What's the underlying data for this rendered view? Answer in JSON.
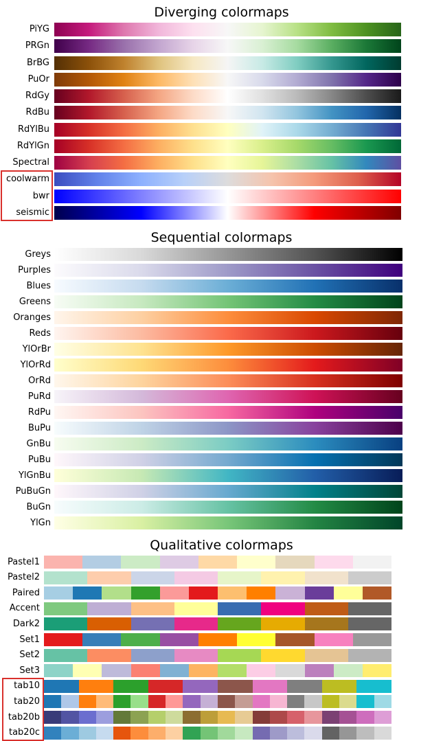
{
  "sections": [
    {
      "title": "Diverging colormaps",
      "maps": [
        {
          "name": "PiYG",
          "type": "gradient",
          "colors": [
            "#8e0152",
            "#c51b7d",
            "#de77ae",
            "#f1b6da",
            "#fde0ef",
            "#f7f7f7",
            "#e6f5d0",
            "#b8e186",
            "#7fbc41",
            "#4d9221",
            "#276419"
          ]
        },
        {
          "name": "PRGn",
          "type": "gradient",
          "colors": [
            "#40004b",
            "#762a83",
            "#9970ab",
            "#c2a5cf",
            "#e7d4e8",
            "#f7f7f7",
            "#d9f0d3",
            "#a6dba0",
            "#5aae61",
            "#1b7837",
            "#00441b"
          ]
        },
        {
          "name": "BrBG",
          "type": "gradient",
          "colors": [
            "#543005",
            "#8c510a",
            "#bf812d",
            "#dfc27d",
            "#f6e8c3",
            "#f5f5f5",
            "#c7eae5",
            "#80cdc1",
            "#35978f",
            "#01665e",
            "#003c30"
          ]
        },
        {
          "name": "PuOr",
          "type": "gradient",
          "colors": [
            "#7f3b08",
            "#b35806",
            "#e08214",
            "#fdb863",
            "#fee0b6",
            "#f7f7f7",
            "#d8daeb",
            "#b2abd2",
            "#8073ac",
            "#542788",
            "#2d004b"
          ]
        },
        {
          "name": "RdGy",
          "type": "gradient",
          "colors": [
            "#67001f",
            "#b2182b",
            "#d6604d",
            "#f4a582",
            "#fddbc7",
            "#ffffff",
            "#e0e0e0",
            "#bababa",
            "#878787",
            "#4d4d4d",
            "#1a1a1a"
          ]
        },
        {
          "name": "RdBu",
          "type": "gradient",
          "colors": [
            "#67001f",
            "#b2182b",
            "#d6604d",
            "#f4a582",
            "#fddbc7",
            "#f7f7f7",
            "#d1e5f0",
            "#92c5de",
            "#4393c3",
            "#2166ac",
            "#053061"
          ]
        },
        {
          "name": "RdYlBu",
          "type": "gradient",
          "colors": [
            "#a50026",
            "#d73027",
            "#f46d43",
            "#fdae61",
            "#fee090",
            "#ffffbf",
            "#e0f3f8",
            "#abd9e9",
            "#74add1",
            "#4575b4",
            "#313695"
          ]
        },
        {
          "name": "RdYlGn",
          "type": "gradient",
          "colors": [
            "#a50026",
            "#d73027",
            "#f46d43",
            "#fdae61",
            "#fee08b",
            "#ffffbf",
            "#d9ef8b",
            "#a6d96a",
            "#66bd63",
            "#1a9850",
            "#006837"
          ]
        },
        {
          "name": "Spectral",
          "type": "gradient",
          "colors": [
            "#9e0142",
            "#d53e4f",
            "#f46d43",
            "#fdae61",
            "#fee08b",
            "#ffffbf",
            "#e6f598",
            "#abdda4",
            "#66c2a5",
            "#3288bd",
            "#5e4fa2"
          ]
        },
        {
          "name": "coolwarm",
          "type": "gradient",
          "colors": [
            "#3b4cc0",
            "#6282ea",
            "#8db0fe",
            "#b8d0f9",
            "#dddcdc",
            "#f5c4ad",
            "#f49a7b",
            "#de604d",
            "#b40426"
          ]
        },
        {
          "name": "bwr",
          "type": "gradient",
          "colors": [
            "#0000ff",
            "#ffffff",
            "#ff0000"
          ]
        },
        {
          "name": "seismic",
          "type": "gradient",
          "colors": [
            "#00004c",
            "#0000ff",
            "#ffffff",
            "#ff0000",
            "#800000"
          ]
        }
      ]
    },
    {
      "title": "Sequential colormaps",
      "maps": [
        {
          "name": "Greys",
          "type": "gradient",
          "colors": [
            "#ffffff",
            "#d9d9d9",
            "#969696",
            "#525252",
            "#000000"
          ]
        },
        {
          "name": "Purples",
          "type": "gradient",
          "colors": [
            "#fcfbfd",
            "#dadaeb",
            "#9e9ac8",
            "#6a51a3",
            "#3f007d"
          ]
        },
        {
          "name": "Blues",
          "type": "gradient",
          "colors": [
            "#f7fbff",
            "#c6dbef",
            "#6baed6",
            "#2171b5",
            "#08306b"
          ]
        },
        {
          "name": "Greens",
          "type": "gradient",
          "colors": [
            "#f7fcf5",
            "#c7e9c0",
            "#74c476",
            "#238b45",
            "#00441b"
          ]
        },
        {
          "name": "Oranges",
          "type": "gradient",
          "colors": [
            "#fff5eb",
            "#fdd0a2",
            "#fd8d3c",
            "#d94801",
            "#7f2704"
          ]
        },
        {
          "name": "Reds",
          "type": "gradient",
          "colors": [
            "#fff5f0",
            "#fcbba1",
            "#fb6a4a",
            "#cb181d",
            "#67000d"
          ]
        },
        {
          "name": "YlOrBr",
          "type": "gradient",
          "colors": [
            "#ffffe5",
            "#fee391",
            "#fe9929",
            "#cc4c02",
            "#662506"
          ]
        },
        {
          "name": "YlOrRd",
          "type": "gradient",
          "colors": [
            "#ffffcc",
            "#fed976",
            "#fd8d3c",
            "#e31a1c",
            "#800026"
          ]
        },
        {
          "name": "OrRd",
          "type": "gradient",
          "colors": [
            "#fff7ec",
            "#fdd49e",
            "#fc8d59",
            "#d7301f",
            "#7f0000"
          ]
        },
        {
          "name": "PuRd",
          "type": "gradient",
          "colors": [
            "#f7f4f9",
            "#d4b9da",
            "#df65b0",
            "#ce1256",
            "#67001f"
          ]
        },
        {
          "name": "RdPu",
          "type": "gradient",
          "colors": [
            "#fff7f3",
            "#fcc5c0",
            "#f768a1",
            "#ae017e",
            "#49006a"
          ]
        },
        {
          "name": "BuPu",
          "type": "gradient",
          "colors": [
            "#f7fcfd",
            "#bfd3e6",
            "#8c96c6",
            "#88419d",
            "#4d004b"
          ]
        },
        {
          "name": "GnBu",
          "type": "gradient",
          "colors": [
            "#f7fcf0",
            "#ccebc5",
            "#7bccc4",
            "#2b8cbe",
            "#084081"
          ]
        },
        {
          "name": "PuBu",
          "type": "gradient",
          "colors": [
            "#fff7fb",
            "#d0d1e6",
            "#74a9cf",
            "#0570b0",
            "#023858"
          ]
        },
        {
          "name": "YlGnBu",
          "type": "gradient",
          "colors": [
            "#ffffd9",
            "#c7e9b4",
            "#41b6c4",
            "#225ea8",
            "#081d58"
          ]
        },
        {
          "name": "PuBuGn",
          "type": "gradient",
          "colors": [
            "#fff7fb",
            "#d0d1e6",
            "#67a9cf",
            "#02818a",
            "#014636"
          ]
        },
        {
          "name": "BuGn",
          "type": "gradient",
          "colors": [
            "#f7fcfd",
            "#ccece6",
            "#66c2a4",
            "#238b45",
            "#00441b"
          ]
        },
        {
          "name": "YlGn",
          "type": "gradient",
          "colors": [
            "#ffffe5",
            "#d9f0a3",
            "#78c679",
            "#238443",
            "#004529"
          ]
        }
      ]
    },
    {
      "title": "Qualitative colormaps",
      "maps": [
        {
          "name": "Pastel1",
          "type": "discrete",
          "colors": [
            "#fbb4ae",
            "#b3cde3",
            "#ccebc5",
            "#decbe4",
            "#fed9a6",
            "#ffffcc",
            "#e5d8bd",
            "#fddaec",
            "#f2f2f2"
          ]
        },
        {
          "name": "Pastel2",
          "type": "discrete",
          "colors": [
            "#b3e2cd",
            "#fdcdac",
            "#cbd5e8",
            "#f4cae4",
            "#e6f5c9",
            "#fff2ae",
            "#f1e2cc",
            "#cccccc"
          ]
        },
        {
          "name": "Paired",
          "type": "discrete",
          "colors": [
            "#a6cee3",
            "#1f78b4",
            "#b2df8a",
            "#33a02c",
            "#fb9a99",
            "#e31a1c",
            "#fdbf6f",
            "#ff7f00",
            "#cab2d6",
            "#6a3d9a",
            "#ffff99",
            "#b15928"
          ]
        },
        {
          "name": "Accent",
          "type": "discrete",
          "colors": [
            "#7fc97f",
            "#beaed4",
            "#fdc086",
            "#ffff99",
            "#386cb0",
            "#f0027f",
            "#bf5b17",
            "#666666"
          ]
        },
        {
          "name": "Dark2",
          "type": "discrete",
          "colors": [
            "#1b9e77",
            "#d95f02",
            "#7570b3",
            "#e7298a",
            "#66a61e",
            "#e6ab02",
            "#a6761d",
            "#666666"
          ]
        },
        {
          "name": "Set1",
          "type": "discrete",
          "colors": [
            "#e41a1c",
            "#377eb8",
            "#4daf4a",
            "#984ea3",
            "#ff7f00",
            "#ffff33",
            "#a65628",
            "#f781bf",
            "#999999"
          ]
        },
        {
          "name": "Set2",
          "type": "discrete",
          "colors": [
            "#66c2a5",
            "#fc8d62",
            "#8da0cb",
            "#e78ac3",
            "#a6d854",
            "#ffd92f",
            "#e5c494",
            "#b3b3b3"
          ]
        },
        {
          "name": "Set3",
          "type": "discrete",
          "colors": [
            "#8dd3c7",
            "#ffffb3",
            "#bebada",
            "#fb8072",
            "#80b1d3",
            "#fdb462",
            "#b3de69",
            "#fccde5",
            "#d9d9d9",
            "#bc80bd",
            "#ccebc5",
            "#ffed6f"
          ]
        },
        {
          "name": "tab10",
          "type": "discrete",
          "colors": [
            "#1f77b4",
            "#ff7f0e",
            "#2ca02c",
            "#d62728",
            "#9467bd",
            "#8c564b",
            "#e377c2",
            "#7f7f7f",
            "#bcbd22",
            "#17becf"
          ]
        },
        {
          "name": "tab20",
          "type": "discrete",
          "colors": [
            "#1f77b4",
            "#aec7e8",
            "#ff7f0e",
            "#ffbb78",
            "#2ca02c",
            "#98df8a",
            "#d62728",
            "#ff9896",
            "#9467bd",
            "#c5b0d5",
            "#8c564b",
            "#c49c94",
            "#e377c2",
            "#f7b6d2",
            "#7f7f7f",
            "#c7c7c7",
            "#bcbd22",
            "#dbdb8d",
            "#17becf",
            "#9edae5"
          ]
        },
        {
          "name": "tab20b",
          "type": "discrete",
          "colors": [
            "#393b79",
            "#5254a3",
            "#6b6ecf",
            "#9c9ede",
            "#637939",
            "#8ca252",
            "#b5cf6b",
            "#cedb9c",
            "#8c6d31",
            "#bd9e39",
            "#e7ba52",
            "#e7cb94",
            "#843c39",
            "#ad494a",
            "#d6616b",
            "#e7969c",
            "#7b4173",
            "#a55194",
            "#ce6dbd",
            "#de9ed6"
          ]
        },
        {
          "name": "tab20c",
          "type": "discrete",
          "colors": [
            "#3182bd",
            "#6baed6",
            "#9ecae1",
            "#c6dbef",
            "#e6550d",
            "#fd8d3c",
            "#fdae6b",
            "#fdd0a2",
            "#31a354",
            "#74c476",
            "#a1d99b",
            "#c7e9c0",
            "#756bb1",
            "#9e9ac8",
            "#bcbddc",
            "#dadaeb",
            "#636363",
            "#969696",
            "#bdbdbd",
            "#d9d9d9"
          ]
        }
      ]
    }
  ],
  "highlight_color": "#d9302c"
}
